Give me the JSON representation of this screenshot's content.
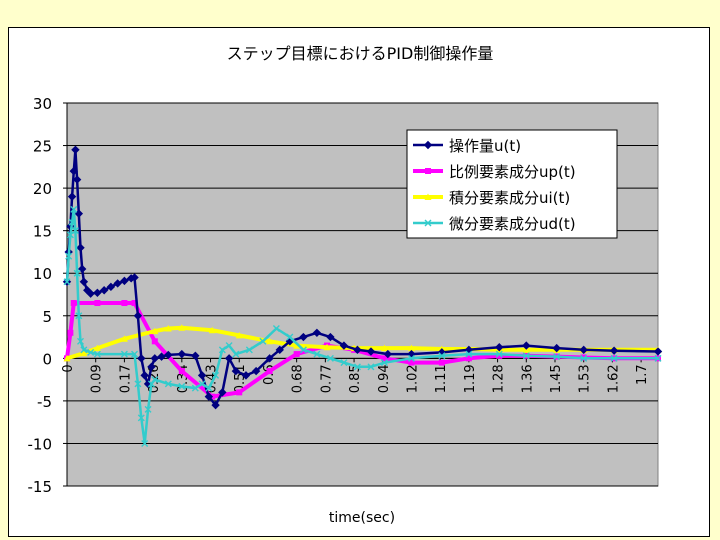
{
  "chart_data": {
    "type": "line",
    "title": "ステップ目標におけるPID制御操作量",
    "xlabel": "time(sec)",
    "ylabel": "",
    "ylim": [
      -15,
      30
    ],
    "yticks": [
      30,
      25,
      20,
      15,
      10,
      5,
      0,
      -5,
      -10,
      -15
    ],
    "xlim": [
      0,
      1.75
    ],
    "x_tick_labels": [
      "0",
      "0.09",
      "0.17",
      "0.26",
      "0.34",
      "0.43",
      "0.51",
      "0.6",
      "0.68",
      "0.77",
      "0.85",
      "0.94",
      "1.02",
      "1.11",
      "1.19",
      "1.28",
      "1.36",
      "1.45",
      "1.53",
      "1.62",
      "1.7"
    ],
    "grid": true,
    "legend_position": "top-right",
    "colors": {
      "plot_bg": "#C0C0C0",
      "page_bg": "#FFFFCC",
      "u": "#000080",
      "up": "#FF00FF",
      "ui": "#FFFF00",
      "ud": "#33CCCC"
    },
    "series": [
      {
        "name": "操作量u(t)",
        "key": "u",
        "marker": "diamond",
        "points": [
          [
            0,
            9
          ],
          [
            0.005,
            12.5
          ],
          [
            0.01,
            15.5
          ],
          [
            0.015,
            19
          ],
          [
            0.02,
            22
          ],
          [
            0.025,
            24.5
          ],
          [
            0.03,
            21
          ],
          [
            0.035,
            17
          ],
          [
            0.04,
            13
          ],
          [
            0.045,
            10.5
          ],
          [
            0.05,
            9
          ],
          [
            0.06,
            8
          ],
          [
            0.07,
            7.6
          ],
          [
            0.09,
            7.7
          ],
          [
            0.11,
            8
          ],
          [
            0.13,
            8.4
          ],
          [
            0.15,
            8.8
          ],
          [
            0.17,
            9.1
          ],
          [
            0.19,
            9.4
          ],
          [
            0.2,
            9.5
          ],
          [
            0.21,
            5
          ],
          [
            0.22,
            0
          ],
          [
            0.23,
            -2
          ],
          [
            0.24,
            -3
          ],
          [
            0.25,
            -1
          ],
          [
            0.26,
            0
          ],
          [
            0.28,
            0.2
          ],
          [
            0.3,
            0.4
          ],
          [
            0.34,
            0.5
          ],
          [
            0.38,
            0.3
          ],
          [
            0.4,
            -2
          ],
          [
            0.42,
            -4.5
          ],
          [
            0.44,
            -5.5
          ],
          [
            0.46,
            -4
          ],
          [
            0.48,
            0
          ],
          [
            0.5,
            -1.5
          ],
          [
            0.53,
            -2
          ],
          [
            0.56,
            -1.5
          ],
          [
            0.6,
            0
          ],
          [
            0.63,
            1
          ],
          [
            0.66,
            2
          ],
          [
            0.7,
            2.5
          ],
          [
            0.74,
            3
          ],
          [
            0.78,
            2.5
          ],
          [
            0.82,
            1.5
          ],
          [
            0.86,
            1
          ],
          [
            0.9,
            0.8
          ],
          [
            0.95,
            0.5
          ],
          [
            1.02,
            0.5
          ],
          [
            1.11,
            0.7
          ],
          [
            1.19,
            1
          ],
          [
            1.28,
            1.3
          ],
          [
            1.36,
            1.5
          ],
          [
            1.45,
            1.2
          ],
          [
            1.53,
            1
          ],
          [
            1.62,
            0.9
          ],
          [
            1.75,
            0.8
          ]
        ]
      },
      {
        "name": "比例要素成分up(t)",
        "key": "up",
        "marker": "square",
        "points": [
          [
            0,
            0
          ],
          [
            0.01,
            3
          ],
          [
            0.02,
            6.5
          ],
          [
            0.09,
            6.5
          ],
          [
            0.17,
            6.5
          ],
          [
            0.2,
            6.5
          ],
          [
            0.26,
            2
          ],
          [
            0.34,
            -1.5
          ],
          [
            0.43,
            -4.5
          ],
          [
            0.51,
            -4
          ],
          [
            0.6,
            -1.5
          ],
          [
            0.68,
            0.5
          ],
          [
            0.77,
            1.5
          ],
          [
            0.85,
            1
          ],
          [
            0.94,
            0
          ],
          [
            1.02,
            -0.5
          ],
          [
            1.11,
            -0.5
          ],
          [
            1.19,
            0
          ],
          [
            1.28,
            0.3
          ],
          [
            1.36,
            0.3
          ],
          [
            1.45,
            0.2
          ],
          [
            1.53,
            0.1
          ],
          [
            1.62,
            0
          ],
          [
            1.75,
            0
          ]
        ]
      },
      {
        "name": "積分要素成分ui(t)",
        "key": "ui",
        "marker": "triangle",
        "points": [
          [
            0,
            0
          ],
          [
            0.05,
            0.6
          ],
          [
            0.09,
            1.2
          ],
          [
            0.17,
            2.3
          ],
          [
            0.26,
            3.2
          ],
          [
            0.3,
            3.5
          ],
          [
            0.34,
            3.6
          ],
          [
            0.43,
            3.3
          ],
          [
            0.51,
            2.7
          ],
          [
            0.6,
            2
          ],
          [
            0.68,
            1.5
          ],
          [
            0.77,
            1.3
          ],
          [
            0.85,
            1.2
          ],
          [
            0.94,
            1.2
          ],
          [
            1.02,
            1.2
          ],
          [
            1.11,
            1.1
          ],
          [
            1.19,
            1.1
          ],
          [
            1.28,
            1
          ],
          [
            1.36,
            1
          ],
          [
            1.45,
            1
          ],
          [
            1.53,
            1
          ],
          [
            1.62,
            1
          ],
          [
            1.75,
            1
          ]
        ]
      },
      {
        "name": "微分要素成分ud(t)",
        "key": "ud",
        "marker": "x",
        "points": [
          [
            0,
            9
          ],
          [
            0.005,
            12
          ],
          [
            0.01,
            14.5
          ],
          [
            0.015,
            16
          ],
          [
            0.02,
            17.5
          ],
          [
            0.025,
            15
          ],
          [
            0.03,
            10
          ],
          [
            0.035,
            5
          ],
          [
            0.04,
            2
          ],
          [
            0.05,
            1
          ],
          [
            0.07,
            0.7
          ],
          [
            0.09,
            0.5
          ],
          [
            0.17,
            0.5
          ],
          [
            0.2,
            0.5
          ],
          [
            0.21,
            -3
          ],
          [
            0.22,
            -7
          ],
          [
            0.23,
            -10
          ],
          [
            0.24,
            -6
          ],
          [
            0.25,
            -3
          ],
          [
            0.26,
            -2.5
          ],
          [
            0.3,
            -3
          ],
          [
            0.34,
            -3.3
          ],
          [
            0.38,
            -3.5
          ],
          [
            0.4,
            -3
          ],
          [
            0.42,
            -3.5
          ],
          [
            0.44,
            -2
          ],
          [
            0.46,
            1
          ],
          [
            0.48,
            1.5
          ],
          [
            0.5,
            0.5
          ],
          [
            0.54,
            1
          ],
          [
            0.58,
            2
          ],
          [
            0.62,
            3.5
          ],
          [
            0.66,
            2.5
          ],
          [
            0.7,
            1
          ],
          [
            0.74,
            0.5
          ],
          [
            0.78,
            0
          ],
          [
            0.82,
            -0.5
          ],
          [
            0.86,
            -1
          ],
          [
            0.9,
            -1
          ],
          [
            0.94,
            -0.5
          ],
          [
            1.02,
            0
          ],
          [
            1.11,
            0.3
          ],
          [
            1.19,
            0.5
          ],
          [
            1.28,
            0.5
          ],
          [
            1.36,
            0.3
          ],
          [
            1.45,
            0.2
          ],
          [
            1.53,
            0
          ],
          [
            1.62,
            0
          ],
          [
            1.75,
            0
          ]
        ]
      }
    ]
  }
}
